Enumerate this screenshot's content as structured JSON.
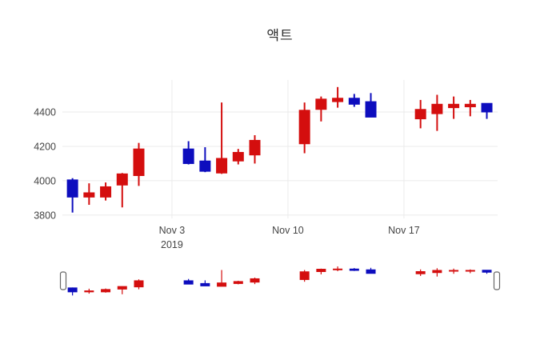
{
  "title": "액트",
  "chart_data": {
    "type": "candlestick",
    "title": "액트",
    "legend": "none",
    "grid": "on",
    "increasing_color": "#d40e0e",
    "decreasing_color": "#0d0dbe",
    "gridline_color": "#ebebeb",
    "tick_color": "#444444",
    "yaxis": {
      "range": [
        3781,
        4586
      ],
      "tick_values": [
        3800,
        4000,
        4200,
        4400
      ],
      "tick_labels": [
        "3800",
        "4000",
        "4200",
        "4400"
      ]
    },
    "xaxis": {
      "unit": "days since 2019-10-28",
      "range": [
        -0.61,
        25.65
      ],
      "ticks": [
        {
          "offset": 6,
          "label": "Nov 3",
          "sublabel": "2019"
        },
        {
          "offset": 13,
          "label": "Nov 10",
          "sublabel": ""
        },
        {
          "offset": 20,
          "label": "Nov 17",
          "sublabel": ""
        }
      ]
    },
    "candles": [
      {
        "date": "2019-10-28",
        "offset": 0,
        "open": 4005,
        "high": 4015,
        "low": 3815,
        "close": 3905
      },
      {
        "date": "2019-10-29",
        "offset": 1,
        "open": 3905,
        "high": 3985,
        "low": 3860,
        "close": 3930
      },
      {
        "date": "2019-10-30",
        "offset": 2,
        "open": 3905,
        "high": 3990,
        "low": 3885,
        "close": 3965
      },
      {
        "date": "2019-10-31",
        "offset": 3,
        "open": 3975,
        "high": 4045,
        "low": 3845,
        "close": 4040
      },
      {
        "date": "2019-11-01",
        "offset": 4,
        "open": 4030,
        "high": 4220,
        "low": 3970,
        "close": 4185
      },
      {
        "date": "2019-11-04",
        "offset": 7,
        "open": 4185,
        "high": 4230,
        "low": 4095,
        "close": 4100
      },
      {
        "date": "2019-11-05",
        "offset": 8,
        "open": 4115,
        "high": 4195,
        "low": 4050,
        "close": 4055
      },
      {
        "date": "2019-11-06",
        "offset": 9,
        "open": 4045,
        "high": 4455,
        "low": 4040,
        "close": 4130
      },
      {
        "date": "2019-11-07",
        "offset": 10,
        "open": 4115,
        "high": 4185,
        "low": 4095,
        "close": 4165
      },
      {
        "date": "2019-11-08",
        "offset": 11,
        "open": 4150,
        "high": 4265,
        "low": 4100,
        "close": 4235
      },
      {
        "date": "2019-11-11",
        "offset": 14,
        "open": 4215,
        "high": 4455,
        "low": 4160,
        "close": 4410
      },
      {
        "date": "2019-11-12",
        "offset": 15,
        "open": 4415,
        "high": 4490,
        "low": 4345,
        "close": 4475
      },
      {
        "date": "2019-11-13",
        "offset": 16,
        "open": 4460,
        "high": 4545,
        "low": 4425,
        "close": 4480
      },
      {
        "date": "2019-11-14",
        "offset": 17,
        "open": 4480,
        "high": 4505,
        "low": 4430,
        "close": 4445
      },
      {
        "date": "2019-11-15",
        "offset": 18,
        "open": 4460,
        "high": 4510,
        "low": 4370,
        "close": 4370
      },
      {
        "date": "2019-11-18",
        "offset": 21,
        "open": 4360,
        "high": 4470,
        "low": 4305,
        "close": 4415
      },
      {
        "date": "2019-11-19",
        "offset": 22,
        "open": 4390,
        "high": 4500,
        "low": 4290,
        "close": 4445
      },
      {
        "date": "2019-11-20",
        "offset": 23,
        "open": 4425,
        "high": 4490,
        "low": 4360,
        "close": 4445
      },
      {
        "date": "2019-11-21",
        "offset": 24,
        "open": 4430,
        "high": 4470,
        "low": 4375,
        "close": 4445
      },
      {
        "date": "2019-11-22",
        "offset": 25,
        "open": 4450,
        "high": 4450,
        "low": 4360,
        "close": 4400
      }
    ],
    "rangeslider": {
      "visible": true,
      "handle_fill": "#ffffff",
      "handle_border": "#666666"
    }
  }
}
